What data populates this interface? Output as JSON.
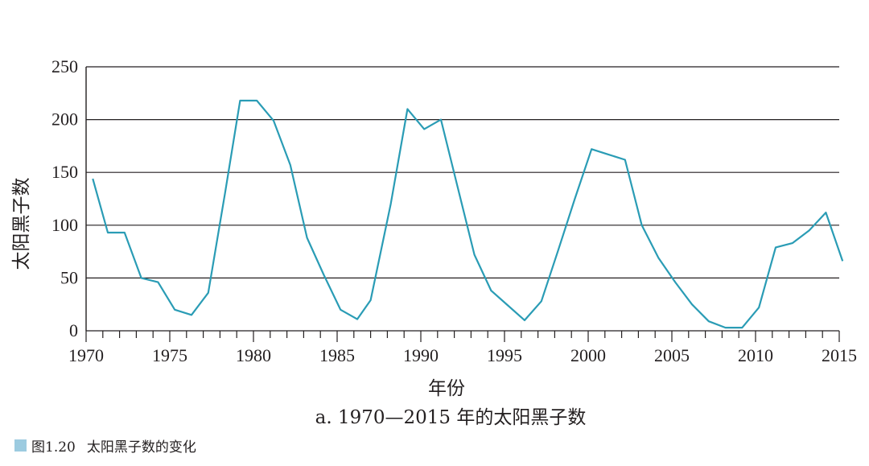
{
  "chart_data": {
    "type": "line",
    "xlabel": "年份",
    "ylabel": "太阳黑子数",
    "subtitle": "a. 1970—2015 年的太阳黑子数",
    "xlim": [
      1970,
      2015
    ],
    "ylim": [
      0,
      250
    ],
    "x_ticks": [
      1970,
      1975,
      1980,
      1985,
      1990,
      1995,
      2000,
      2005,
      2010,
      2015
    ],
    "y_ticks": [
      0,
      50,
      100,
      150,
      200,
      250
    ],
    "grid": "horizontal",
    "line_color": "#2a9cb5",
    "series": [
      {
        "x": [
          1970.4,
          1971.3,
          1972.3,
          1973.3,
          1974.3,
          1975.3,
          1976.3,
          1977.3,
          1978.3,
          1979.2,
          1980.2,
          1981.2,
          1982.2,
          1983.2,
          1984.2,
          1985.2,
          1986.2,
          1987.0,
          1988.2,
          1989.2,
          1990.2,
          1991.2,
          1992.2,
          1993.2,
          1994.2,
          1995.2,
          1996.2,
          1997.2,
          1998.2,
          1999.2,
          2000.2,
          2001.2,
          2002.2,
          2003.2,
          2004.2,
          2005.2,
          2006.2,
          2007.2,
          2008.2,
          2009.2,
          2010.2,
          2011.2,
          2012.2,
          2013.2,
          2014.2,
          2015.2
        ],
        "y": [
          144,
          93,
          93,
          50,
          46,
          20,
          15,
          36,
          130,
          218,
          218,
          199,
          157,
          88,
          53,
          20,
          11,
          29,
          120,
          210,
          191,
          200,
          136,
          72,
          38,
          24,
          10,
          28,
          76,
          125,
          172,
          167,
          162,
          100,
          69,
          46,
          25,
          9,
          3,
          3,
          22,
          79,
          83,
          95,
          112,
          66
        ]
      }
    ]
  },
  "figure_caption": {
    "number": "图1.20",
    "text": "太阳黑子数的变化"
  }
}
